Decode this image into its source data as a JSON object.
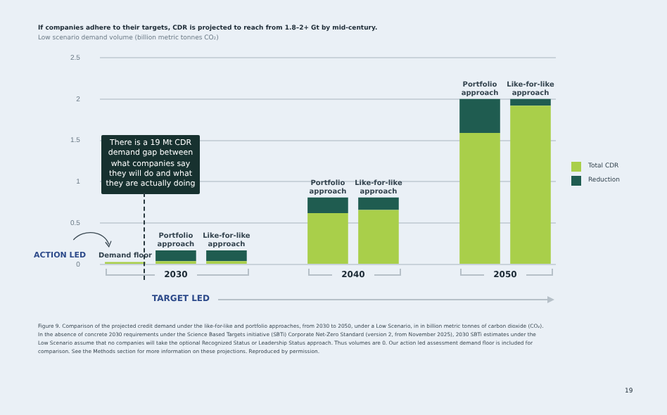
{
  "chart_data": {
    "type": "bar",
    "stacked": true,
    "title": "If companies adhere to their targets, CDR is projected to reach from 1.8–2+ Gt by mid-century.",
    "subtitle": "Low scenario demand volume (billion metric tonnes CO₂)",
    "categories": [
      "Demand floor",
      "Portfolio approach",
      "Like-for-like approach",
      null,
      "Portfolio approach",
      "Like-for-like approach",
      null,
      "Portfolio approach",
      "Like-for-like approach"
    ],
    "series": [
      {
        "name": "Total CDR",
        "color": "#a9cf4a",
        "values": [
          0.03,
          0.04,
          0.04,
          null,
          0.62,
          0.66,
          null,
          1.59,
          1.92
        ]
      },
      {
        "name": "Reduction",
        "color": "#1f5c50",
        "values": [
          null,
          0.13,
          0.13,
          null,
          0.19,
          0.15,
          null,
          0.41,
          0.08
        ]
      }
    ],
    "ylim": [
      0,
      2.5
    ],
    "yticks": [
      0,
      0.5,
      1.0,
      1.5,
      2.0,
      2.5
    ],
    "grid": "y",
    "legend": "right",
    "annotations": [
      "There is a 19 Mt CDR demand gap between what companies say they will do and what they are actually doing",
      "ACTION LED",
      "TARGET LED",
      "2030",
      "2040",
      "2050",
      "Figure 9. Comparison of the projected credit demand under the like-for-like and portfolio approaches, from 2030 to 2050, under a Low Scenario, in in billion metric tonnes of carbon dioxide (CO₂). In the absence of concrete 2030 requirements under the Science Based Targets initiative (SBTi) Corporate Net-Zero Standard (version 2, from November 2025), 2030 SBTi estimates under the Low Scenario assume that no companies will take the optional Recognized Status or Leadership Status approach. Thus volumes are 0. Our action led assessment demand floor is included for comparison. See the Methods section for more information on these projections. Reproduced by permission.",
      "19"
    ]
  }
}
